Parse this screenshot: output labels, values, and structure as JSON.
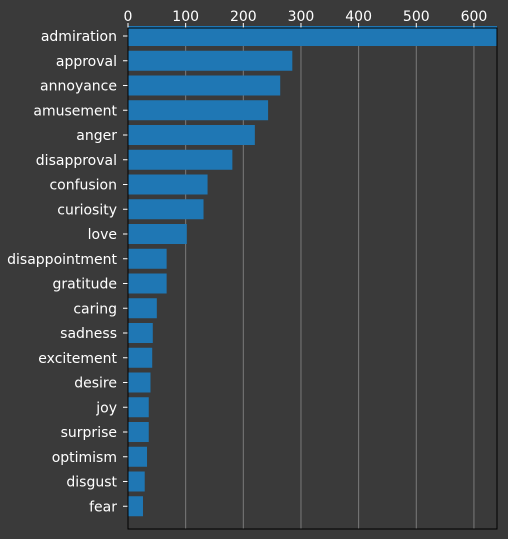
{
  "chart_data": {
    "type": "bar",
    "orientation": "horizontal",
    "title": "",
    "xlabel": "",
    "ylabel": "",
    "xlim": [
      0,
      640
    ],
    "x_ticks": [
      0,
      100,
      200,
      300,
      400,
      500,
      600
    ],
    "x_axis_position": "top",
    "grid": "vertical",
    "colors": {
      "background": "#3a3a3a",
      "bar": "#1f77b4",
      "grid": "#7a7a7a",
      "axis": "#000000",
      "text": "#ffffff"
    },
    "categories": [
      "admiration",
      "approval",
      "annoyance",
      "amusement",
      "anger",
      "disapproval",
      "confusion",
      "curiosity",
      "love",
      "disappointment",
      "gratitude",
      "caring",
      "sadness",
      "excitement",
      "desire",
      "joy",
      "surprise",
      "optimism",
      "disgust",
      "fear"
    ],
    "values": [
      640,
      285,
      264,
      243,
      220,
      181,
      138,
      131,
      102,
      67,
      67,
      50,
      43,
      42,
      39,
      36,
      36,
      33,
      29,
      26
    ]
  }
}
